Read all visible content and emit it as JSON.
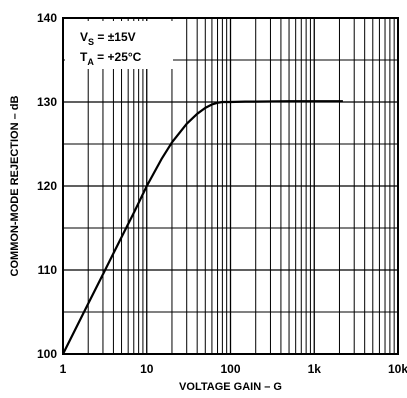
{
  "chart_data": {
    "type": "line",
    "title": "",
    "xlabel": "VOLTAGE GAIN – G",
    "ylabel": "COMMON-MODE REJECTION – dB",
    "x_scale": "log",
    "xlim": [
      1,
      10000
    ],
    "ylim": [
      100,
      140
    ],
    "x_ticks": [
      1,
      10,
      100,
      1000,
      10000
    ],
    "x_tick_labels": [
      "1",
      "10",
      "100",
      "1k",
      "10k"
    ],
    "y_ticks": [
      100,
      110,
      120,
      130,
      140
    ],
    "y_tick_labels": [
      "100",
      "110",
      "120",
      "130",
      "140"
    ],
    "grid": true,
    "annotations": {
      "vs_main": "V",
      "vs_sub": "S",
      "vs_rest": " = ±15V",
      "ta_main": "T",
      "ta_sub": "A",
      "ta_rest": " = +25°C"
    },
    "series": [
      {
        "color": "#000000",
        "x": [
          1,
          2,
          3,
          5,
          7,
          10,
          15,
          20,
          30,
          40,
          50,
          60,
          70,
          80,
          90,
          100,
          150,
          200,
          500,
          1000,
          2200
        ],
        "y": [
          100,
          106,
          109.5,
          113.9,
          116.8,
          120,
          123.2,
          125.2,
          127.4,
          128.6,
          129.3,
          129.7,
          129.9,
          130,
          130,
          130,
          130.05,
          130.05,
          130.1,
          130.1,
          130.1
        ]
      }
    ]
  }
}
